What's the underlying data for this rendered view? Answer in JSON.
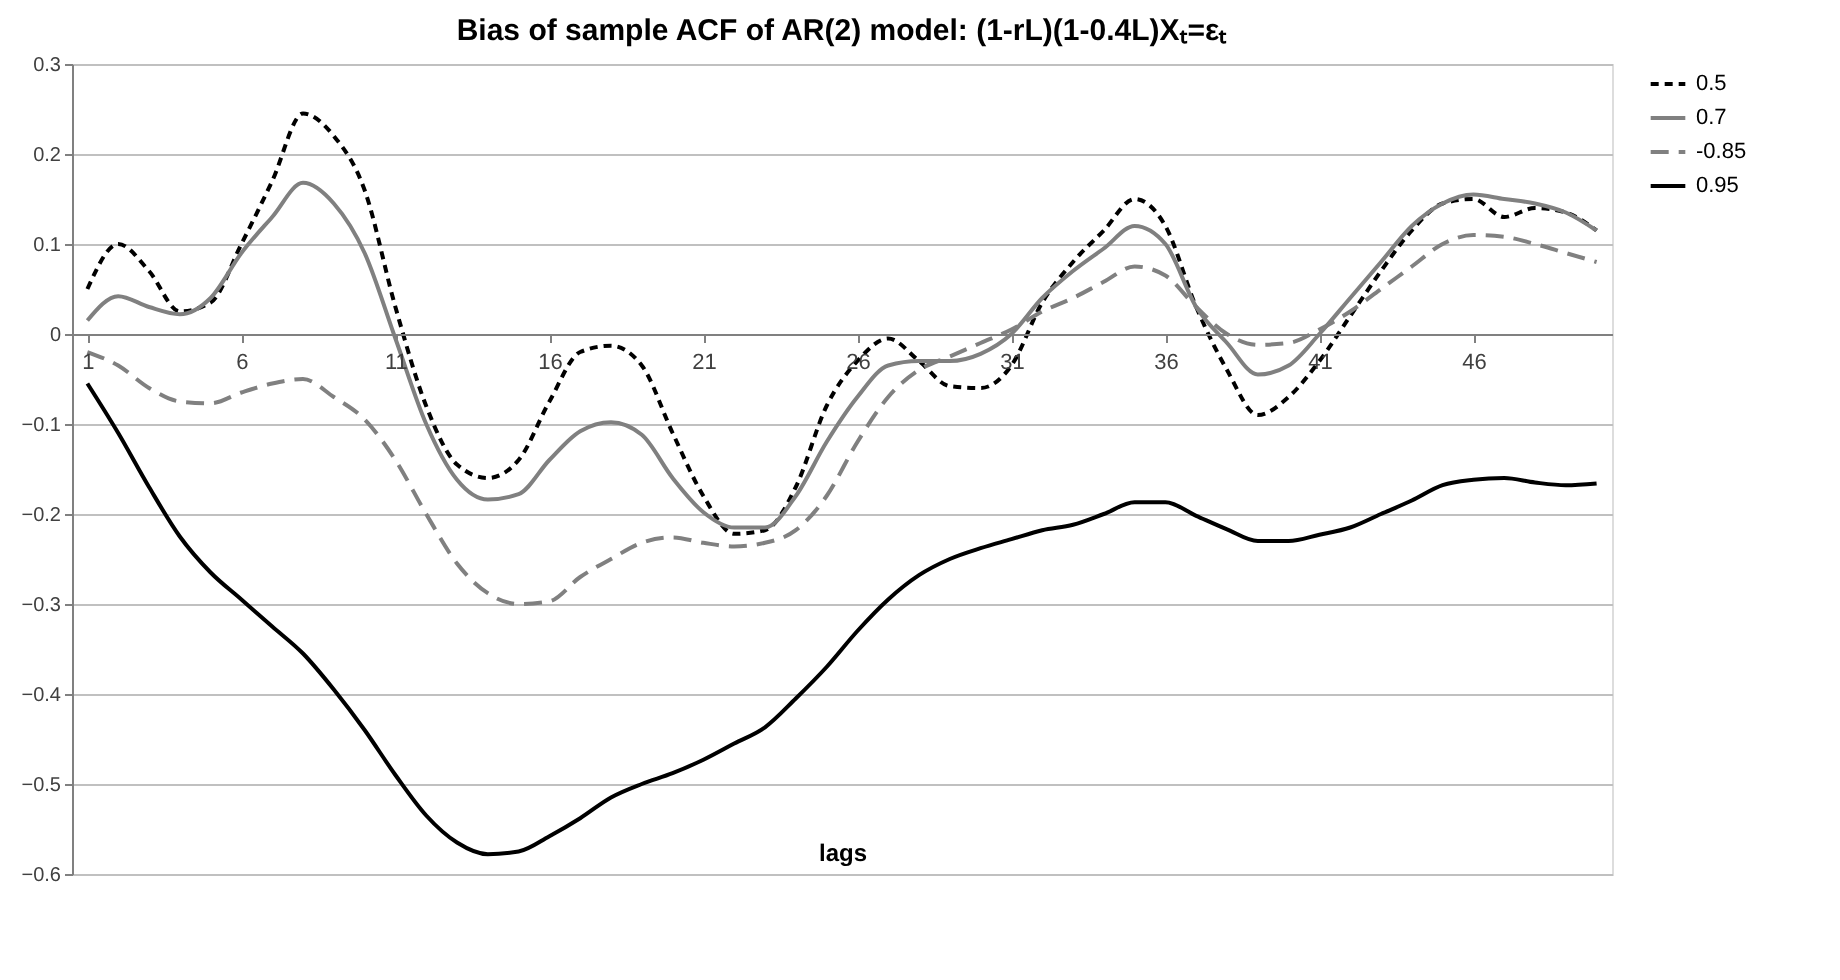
{
  "chart_data": {
    "type": "line",
    "title": "Bias of sample ACF of AR(2) model:  (1-rL)(1-0.4L)Xₜ=εₜ",
    "xlabel": "lags",
    "x": [
      1,
      2,
      3,
      4,
      5,
      6,
      7,
      8,
      9,
      10,
      11,
      12,
      13,
      14,
      15,
      16,
      17,
      18,
      19,
      20,
      21,
      22,
      23,
      24,
      25,
      26,
      27,
      28,
      29,
      30,
      31,
      32,
      33,
      34,
      35,
      36,
      37,
      38,
      39,
      40,
      41,
      42,
      43,
      44,
      45,
      46,
      47,
      48,
      49,
      50
    ],
    "xlim": [
      0.5,
      50.5
    ],
    "xticks": [
      1,
      6,
      11,
      16,
      21,
      26,
      31,
      36,
      41,
      46
    ],
    "ylim": [
      -0.6,
      0.3
    ],
    "yticks": [
      -0.6,
      -0.5,
      -0.4,
      -0.3,
      -0.2,
      -0.1,
      0,
      0.1,
      0.2,
      0.3
    ],
    "grid": "y",
    "legend": "right",
    "marker": "none",
    "series": [
      {
        "name": "0.5",
        "color": "#000000",
        "line_style": "dotted",
        "values": [
          0.05,
          0.1,
          0.07,
          0.025,
          0.035,
          0.1,
          0.17,
          0.245,
          0.22,
          0.16,
          0.03,
          -0.08,
          -0.145,
          -0.16,
          -0.14,
          -0.075,
          -0.02,
          -0.013,
          -0.035,
          -0.11,
          -0.18,
          -0.222,
          -0.218,
          -0.17,
          -0.08,
          -0.03,
          -0.005,
          -0.03,
          -0.058,
          -0.06,
          -0.035,
          0.035,
          0.08,
          0.115,
          0.15,
          0.12,
          0.03,
          -0.04,
          -0.09,
          -0.07,
          -0.03,
          0.02,
          0.07,
          0.115,
          0.145,
          0.15,
          0.13,
          0.14,
          0.135,
          0.115
        ]
      },
      {
        "name": "0.7",
        "color": "#808080",
        "line_style": "solid",
        "values": [
          0.015,
          0.042,
          0.03,
          0.022,
          0.04,
          0.09,
          0.13,
          0.168,
          0.145,
          0.09,
          -0.005,
          -0.1,
          -0.162,
          -0.184,
          -0.178,
          -0.14,
          -0.108,
          -0.098,
          -0.112,
          -0.16,
          -0.198,
          -0.215,
          -0.215,
          -0.18,
          -0.12,
          -0.07,
          -0.035,
          -0.03,
          -0.03,
          -0.022,
          0.0,
          0.04,
          0.07,
          0.095,
          0.12,
          0.1,
          0.03,
          -0.01,
          -0.045,
          -0.035,
          0.0,
          0.04,
          0.08,
          0.12,
          0.145,
          0.155,
          0.15,
          0.145,
          0.135,
          0.115
        ]
      },
      {
        "name": "-0.85",
        "color": "#808080",
        "line_style": "dashed",
        "values": [
          -0.02,
          -0.035,
          -0.06,
          -0.075,
          -0.077,
          -0.065,
          -0.055,
          -0.05,
          -0.07,
          -0.095,
          -0.14,
          -0.2,
          -0.255,
          -0.288,
          -0.3,
          -0.297,
          -0.27,
          -0.25,
          -0.232,
          -0.226,
          -0.232,
          -0.236,
          -0.232,
          -0.218,
          -0.18,
          -0.12,
          -0.07,
          -0.04,
          -0.025,
          -0.01,
          0.005,
          0.025,
          0.04,
          0.058,
          0.075,
          0.065,
          0.03,
          0.0,
          -0.012,
          -0.01,
          0.005,
          0.025,
          0.05,
          0.075,
          0.1,
          0.11,
          0.108,
          0.1,
          0.09,
          0.08
        ]
      },
      {
        "name": "0.95",
        "color": "#000000",
        "line_style": "solid",
        "values": [
          -0.055,
          -0.11,
          -0.17,
          -0.225,
          -0.265,
          -0.295,
          -0.325,
          -0.355,
          -0.395,
          -0.44,
          -0.49,
          -0.535,
          -0.565,
          -0.578,
          -0.575,
          -0.558,
          -0.538,
          -0.515,
          -0.5,
          -0.488,
          -0.473,
          -0.455,
          -0.437,
          -0.405,
          -0.37,
          -0.33,
          -0.295,
          -0.268,
          -0.25,
          -0.238,
          -0.228,
          -0.218,
          -0.212,
          -0.2,
          -0.187,
          -0.187,
          -0.202,
          -0.217,
          -0.23,
          -0.23,
          -0.223,
          -0.215,
          -0.2,
          -0.185,
          -0.168,
          -0.162,
          -0.16,
          -0.165,
          -0.168,
          -0.166
        ]
      }
    ]
  }
}
